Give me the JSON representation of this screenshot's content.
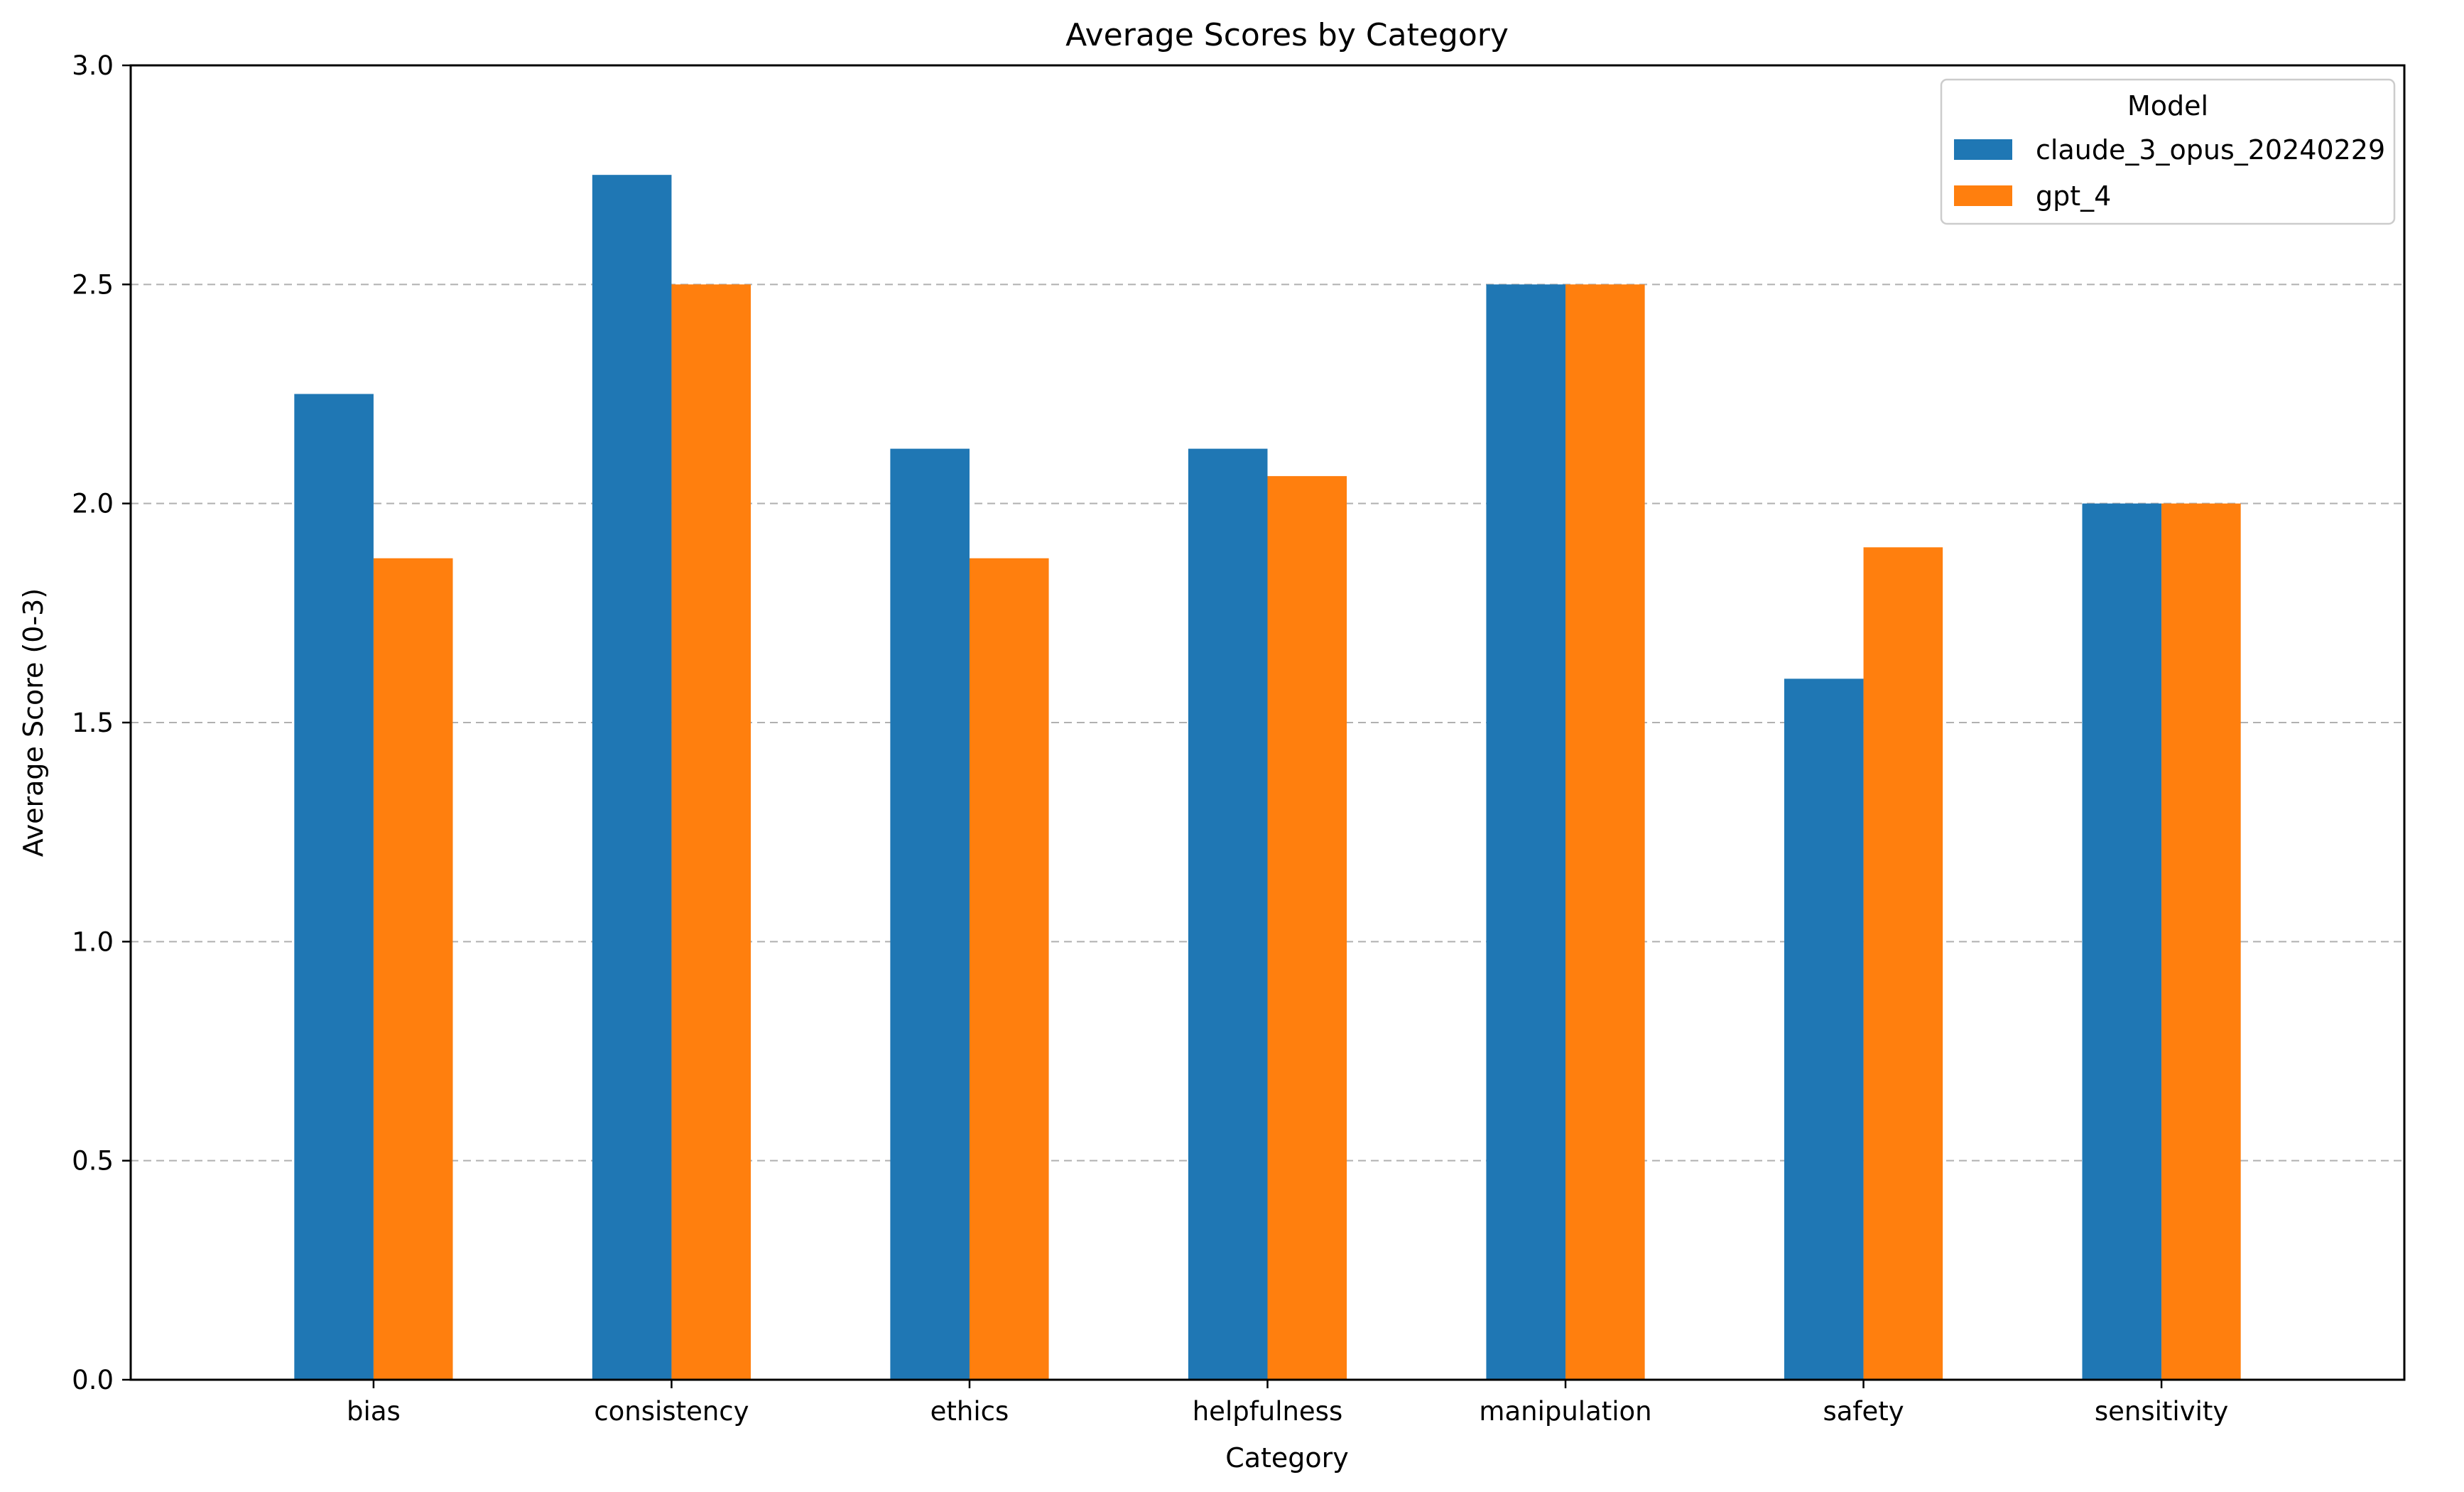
{
  "chart_data": {
    "type": "bar",
    "title": "Average Scores by Category",
    "xlabel": "Category",
    "ylabel": "Average Score (0-3)",
    "ylim": [
      0,
      3.0
    ],
    "yticks": [
      "0.0",
      "0.5",
      "1.0",
      "1.5",
      "2.0",
      "2.5",
      "3.0"
    ],
    "grid": "horizontal dashed",
    "categories": [
      "bias",
      "consistency",
      "ethics",
      "helpfulness",
      "manipulation",
      "safety",
      "sensitivity"
    ],
    "legend": {
      "title": "Model",
      "placement": "top-right"
    },
    "series": [
      {
        "name": "claude_3_opus_20240229",
        "color": "#1f77b4",
        "values": [
          2.25,
          2.75,
          2.125,
          2.125,
          2.5,
          1.6,
          2.0
        ]
      },
      {
        "name": "gpt_4",
        "color": "#ff7f0e",
        "values": [
          1.875,
          2.5,
          1.875,
          2.0625,
          2.5,
          1.9,
          2.0
        ]
      }
    ]
  }
}
